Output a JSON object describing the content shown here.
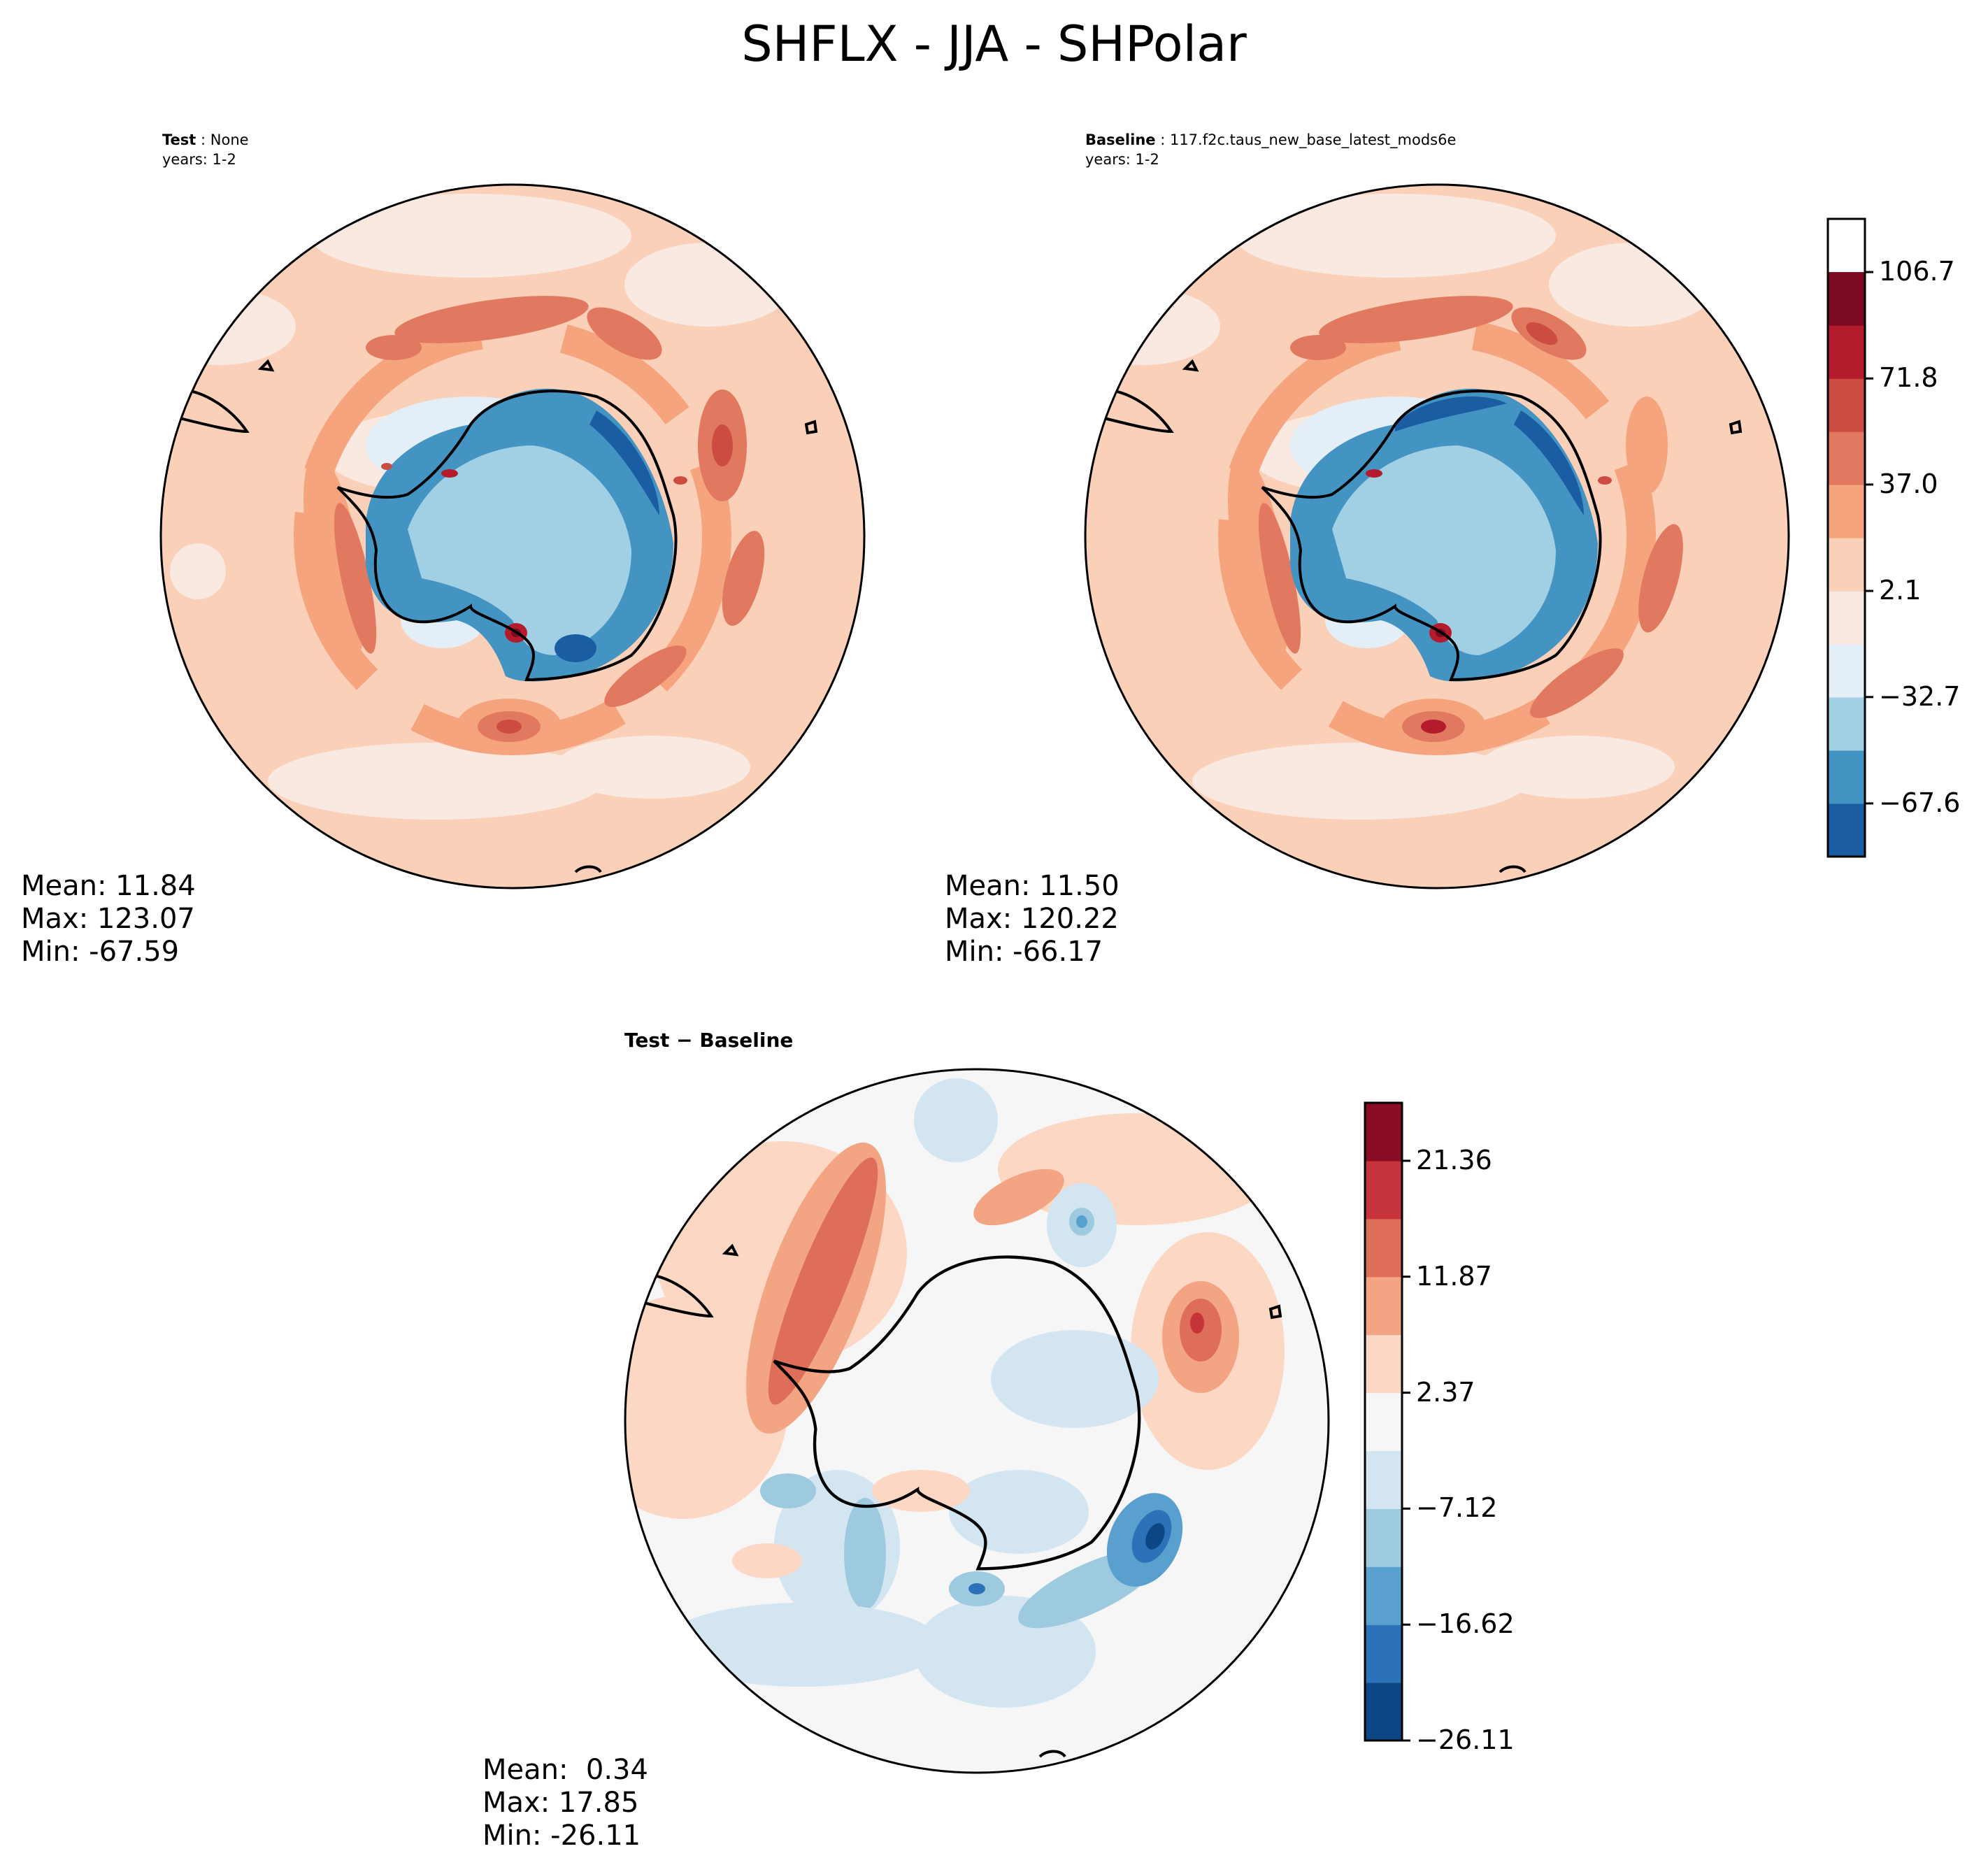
{
  "figure": {
    "title": "SHFLX - JJA - SHPolar",
    "panels": [
      {
        "id": "test",
        "title_bold": "Test",
        "title_sep": " : ",
        "title_text": "None",
        "subtitle": "years: 1-2",
        "stats": {
          "mean": "Mean: 11.84",
          "max": "Max: 123.07",
          "min": "Min: -67.59"
        }
      },
      {
        "id": "baseline",
        "title_bold": "Baseline",
        "title_sep": " : ",
        "title_text": "117.f2c.taus_new_base_latest_mods6e",
        "subtitle": "years: 1-2",
        "stats": {
          "mean": "Mean: 11.50",
          "max": "Max: 120.22",
          "min": "Min: -66.17"
        }
      },
      {
        "id": "diff",
        "title_bold": "Test − Baseline",
        "stats": {
          "mean": "Mean:  0.34",
          "max": "Max: 17.85",
          "min": "Min: -26.11"
        }
      }
    ]
  },
  "chart_data": [
    {
      "type": "heatmap",
      "projection": "south-polar-stereographic",
      "title": "Test : None",
      "subtitle": "years: 1-2",
      "variable": "SHFLX",
      "season": "JJA",
      "region": "SHPolar",
      "mean": 11.84,
      "max": 123.07,
      "min": -67.59,
      "colorbar": "shared-with-baseline"
    },
    {
      "type": "heatmap",
      "projection": "south-polar-stereographic",
      "title": "Baseline : 117.f2c.taus_new_base_latest_mods6e",
      "subtitle": "years: 1-2",
      "mean": 11.5,
      "max": 120.22,
      "min": -66.17,
      "colorbar": {
        "levels": [
          -85.05,
          -67.6,
          -50.15,
          -32.7,
          -15.3,
          2.1,
          19.55,
          37.0,
          54.4,
          71.8,
          89.25,
          106.7,
          124.15
        ],
        "tick_values": [
          -67.6,
          -32.7,
          2.1,
          37.0,
          71.8,
          106.7
        ],
        "tick_labels": [
          "−67.6",
          "−32.7",
          "2.1",
          "37.0",
          "71.8",
          "106.7"
        ],
        "colors": [
          "#1a5da3",
          "#4393c3",
          "#a1cfe4",
          "#e3eef6",
          "#f9e9e1",
          "#fbd0b9",
          "#f5a47e",
          "#e17960",
          "#cd4c42",
          "#b41c2d",
          "#7c0a23"
        ]
      }
    },
    {
      "type": "heatmap",
      "projection": "south-polar-stereographic",
      "title": "Test − Baseline",
      "mean": 0.34,
      "max": 17.85,
      "min": -26.11,
      "colorbar": {
        "levels": [
          -26.11,
          -21.36,
          -16.62,
          -11.87,
          -7.12,
          -2.37,
          2.37,
          7.12,
          11.87,
          16.62,
          21.36,
          26.11
        ],
        "tick_values": [
          -26.11,
          -16.62,
          -7.12,
          2.37,
          11.87,
          21.36
        ],
        "tick_labels": [
          "−26.11",
          "−16.62",
          "−7.12",
          "2.37",
          "11.87",
          "21.36"
        ],
        "colors": [
          "#0d4685",
          "#2c72b9",
          "#5aa0cf",
          "#9ecae0",
          "#d3e5f1",
          "#f6f6f6",
          "#fbd7c4",
          "#f3a482",
          "#de6d59",
          "#c5343b",
          "#8a0c24"
        ]
      }
    }
  ]
}
